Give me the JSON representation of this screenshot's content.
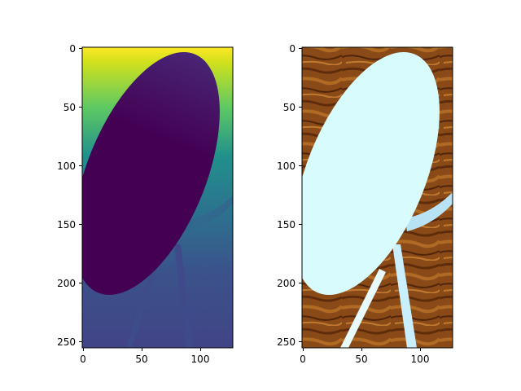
{
  "colors": {
    "viridis_top": "#fde725",
    "viridis_mid": "#21918c",
    "viridis_low": "#3b528b",
    "viridis_dark": "#440154",
    "wood_dark": "#6b3410",
    "wood_light": "#a8641f",
    "disc_color": "#d8fbfd",
    "leg_color": "#c9efff"
  },
  "panels": [
    {
      "name": "depth-map-panel",
      "image": "depth map (viridis colormap) of a tilted round table seen from above",
      "x_ticks": [
        "0",
        "50",
        "100"
      ],
      "y_ticks": [
        "0",
        "50",
        "100",
        "150",
        "200",
        "250"
      ]
    },
    {
      "name": "rgb-panel",
      "image": "photo of a light cyan round table with legs on a brown wooden floor",
      "x_ticks": [
        "0",
        "50",
        "100"
      ],
      "y_ticks": [
        "0",
        "50",
        "100",
        "150",
        "200",
        "250"
      ]
    }
  ]
}
